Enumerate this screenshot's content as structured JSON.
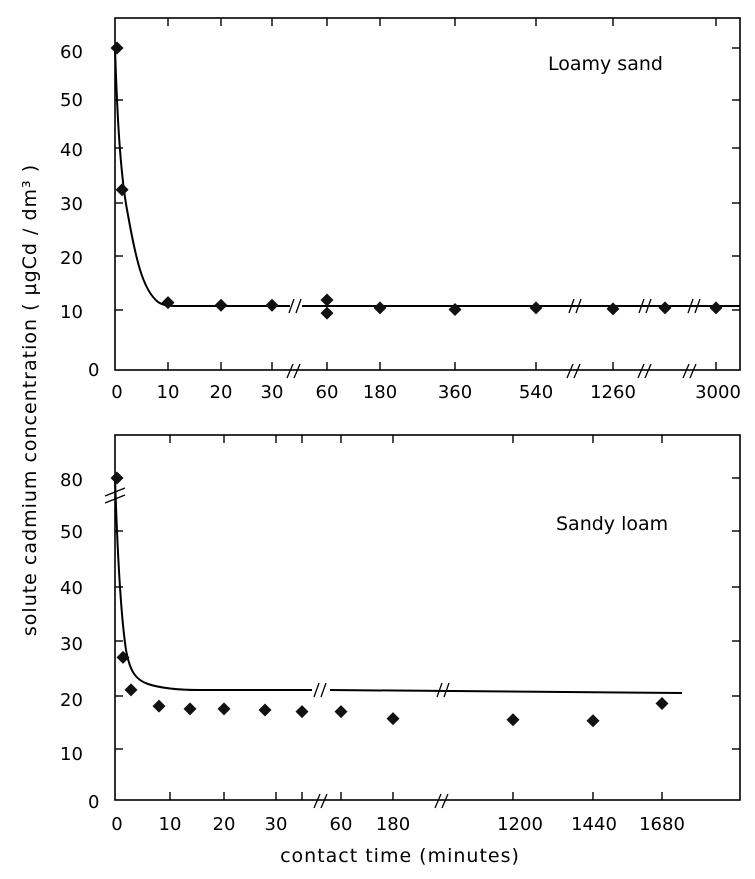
{
  "ylabel": "solute cadmium concentration ( µgCd / dm³ )",
  "xlabel": "contact time (minutes)",
  "chart_data": [
    {
      "type": "scatter",
      "title": "Loamy sand",
      "xlabel": "contact time (minutes)",
      "ylabel": "solute cadmium concentration ( µgCd / dm³ )",
      "x_tick_labels": [
        "0",
        "10",
        "20",
        "30",
        "60",
        "180",
        "360",
        "540",
        "1260",
        "3000"
      ],
      "y_ticks": [
        0,
        10,
        20,
        30,
        40,
        50,
        60
      ],
      "ylim": [
        0,
        60
      ],
      "axis_breaks": [
        "30–60",
        "540–1260",
        "after 1260",
        "before 3000"
      ],
      "grid": false,
      "series": [
        {
          "x": [
            0,
            1,
            10,
            20,
            30,
            60,
            60,
            180,
            360,
            540,
            1260,
            2100,
            3000
          ],
          "y": [
            60,
            33,
            11.5,
            11,
            11,
            12,
            9.5,
            10.5,
            10.2,
            10.5,
            10.3,
            10.5,
            10.5
          ]
        }
      ]
    },
    {
      "type": "scatter",
      "title": "Sandy loam",
      "xlabel": "contact time (minutes)",
      "ylabel": "solute cadmium concentration ( µgCd / dm³ )",
      "x_tick_labels": [
        "0",
        "10",
        "20",
        "30",
        "60",
        "180",
        "1200",
        "1440",
        "1680"
      ],
      "y_ticks": [
        0,
        10,
        20,
        30,
        40,
        50,
        80
      ],
      "ylim": [
        0,
        80
      ],
      "axis_breaks": [
        "y 50–80",
        "30–60",
        "180–1200"
      ],
      "grid": false,
      "series": [
        {
          "x": [
            0,
            1,
            2,
            7,
            13,
            20,
            27,
            33,
            60,
            180,
            1200,
            1440,
            1680
          ],
          "y": [
            80,
            26.5,
            20.5,
            17.5,
            17,
            17,
            16.8,
            16.5,
            16.5,
            15.2,
            15,
            14.8,
            18
          ]
        }
      ]
    }
  ]
}
